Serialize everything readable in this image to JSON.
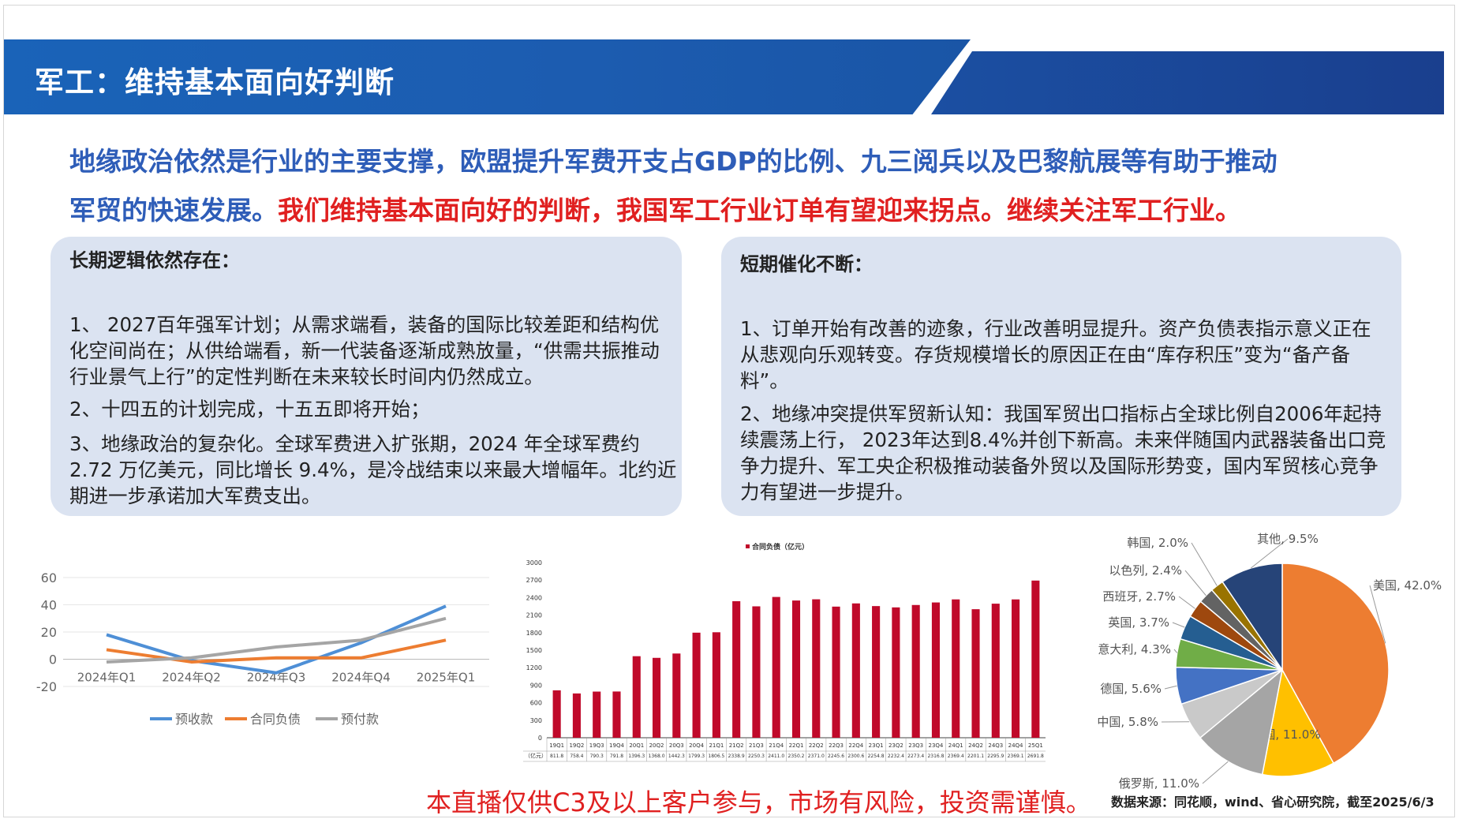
{
  "header": {
    "title": "军工：维持基本面向好判断"
  },
  "lead": {
    "line1": "地缘政治依然是行业的主要支撑，欧盟提升军费开支占GDP的比例、九三阅兵以及巴黎航展等有助于推动",
    "line2_blue": "军贸的快速发展。",
    "line2_red": "我们维持基本面向好的判断，我国军工行业订单有望迎来拐点。继续关注军工行业。"
  },
  "left_box": {
    "title": "长期逻辑依然存在：",
    "items": [
      "1、 2027百年强军计划；从需求端看，装备的国际比较差距和结构优化空间尚在；从供给端看，新一代装备逐渐成熟放量，“供需共振推动行业景气上行”的定性判断在未来较长时间内仍然成立。",
      "2、十四五的计划完成，十五五即将开始；",
      "3、地缘政治的复杂化。全球军费进入扩张期，2024 年全球军费约 2.72 万亿美元，同比增长 9.4%，是冷战结束以来最大增幅年。北约近期进一步承诺加大军费支出。"
    ]
  },
  "right_box": {
    "title": "短期催化不断：",
    "items": [
      "1、订单开始有改善的迹象，行业改善明显提升。资产负债表指示意义正在从悲观向乐观转变。存货规模增长的原因正在由“库存积压”变为“备产备料”。",
      "2、地缘冲突提供军贸新认知：我国军贸出口指标占全球比例自2006年起持续震荡上行， 2023年达到8.4%并创下新高。未来伴随国内武器装备出口竞争力提升、军工央企积极推动装备外贸以及国际形势变，国内军贸核心竞争力有望进一步提升。"
    ]
  },
  "chart_data": [
    {
      "type": "line",
      "categories": [
        "2024年Q1",
        "2024年Q2",
        "2024年Q3",
        "2024年Q4",
        "2025年Q1"
      ],
      "ylim": [
        -20,
        60
      ],
      "yticks": [
        "60",
        "40",
        "20",
        "0",
        "-20"
      ],
      "legend_position": "bottom",
      "series": [
        {
          "name": "预收款",
          "color": "#4e8fd6",
          "values": [
            18,
            -1,
            -10,
            12,
            39
          ]
        },
        {
          "name": "合同负债",
          "color": "#ed7d31",
          "values": [
            7,
            -2,
            1,
            1,
            14
          ]
        },
        {
          "name": "预付款",
          "color": "#a5a5a5",
          "values": [
            -2,
            1,
            9,
            14,
            30
          ]
        }
      ]
    },
    {
      "type": "bar",
      "legend": "合同负债（亿元）",
      "color": "#c0092a",
      "ylim": [
        0,
        3000
      ],
      "yticks": [
        "3000",
        "2700",
        "2400",
        "2100",
        "1800",
        "1500",
        "1200",
        "900",
        "600",
        "300",
        "0"
      ],
      "row_label": "（亿元）",
      "categories": [
        "19Q1",
        "19Q2",
        "19Q3",
        "19Q4",
        "20Q1",
        "20Q2",
        "20Q3",
        "20Q4",
        "21Q1",
        "21Q2",
        "21Q3",
        "21Q4",
        "22Q1",
        "22Q2",
        "22Q3",
        "22Q4",
        "23Q1",
        "23Q2",
        "23Q3",
        "23Q4",
        "24Q1",
        "24Q2",
        "24Q3",
        "24Q4",
        "25Q1"
      ],
      "values": [
        811.8,
        758.4,
        790.3,
        791.8,
        1396.3,
        1368.0,
        1442.3,
        1799.3,
        1806.5,
        2338.9,
        2250.3,
        2411.0,
        2350.2,
        2371.0,
        2245.6,
        2300.6,
        2254.8,
        2232.4,
        2273.4,
        2316.8,
        2369.4,
        2201.1,
        2295.9,
        2369.1,
        2691.8
      ],
      "value_labels": [
        "811.8",
        "758.4",
        "790.3",
        "791.8",
        "1396.3",
        "1368.0",
        "1442.3",
        "1799.3",
        "1806.5",
        "2338.9",
        "2250.3",
        "2411.0",
        "2350.2",
        "2371.0",
        "2245.6",
        "2300.6",
        "2254.8",
        "2232.4",
        "2273.4",
        "2316.8",
        "2369.4",
        "2201.1",
        "2295.9",
        "2369.1",
        "2691.8"
      ]
    },
    {
      "type": "pie",
      "slices": [
        {
          "label": "美国, 42.0%",
          "value": 42.0,
          "color": "#ed7d31"
        },
        {
          "label": "法国, 11.0%",
          "value": 11.0,
          "color": "#ffc000"
        },
        {
          "label": "俄罗斯, 11.0%",
          "value": 11.0,
          "color": "#a5a5a5"
        },
        {
          "label": "中国, 5.8%",
          "value": 5.8,
          "color": "#c9c9c9"
        },
        {
          "label": "德国, 5.6%",
          "value": 5.6,
          "color": "#4472c4"
        },
        {
          "label": "意大利, 4.3%",
          "value": 4.3,
          "color": "#70ad47"
        },
        {
          "label": "英国, 3.7%",
          "value": 3.7,
          "color": "#255e91"
        },
        {
          "label": "西班牙, 2.7%",
          "value": 2.7,
          "color": "#9e480e"
        },
        {
          "label": "以色列, 2.4%",
          "value": 2.4,
          "color": "#636363"
        },
        {
          "label": "韩国, 2.0%",
          "value": 2.0,
          "color": "#997300"
        },
        {
          "label": "其他, 9.5%",
          "value": 9.5,
          "color": "#264478"
        }
      ]
    }
  ],
  "footer": {
    "warning": "本直播仅供C3及以上客户参与，市场有风险，投资需谨慎。",
    "source": "数据来源：同花顺，wind、省心研究院，截至2025/6/3"
  }
}
